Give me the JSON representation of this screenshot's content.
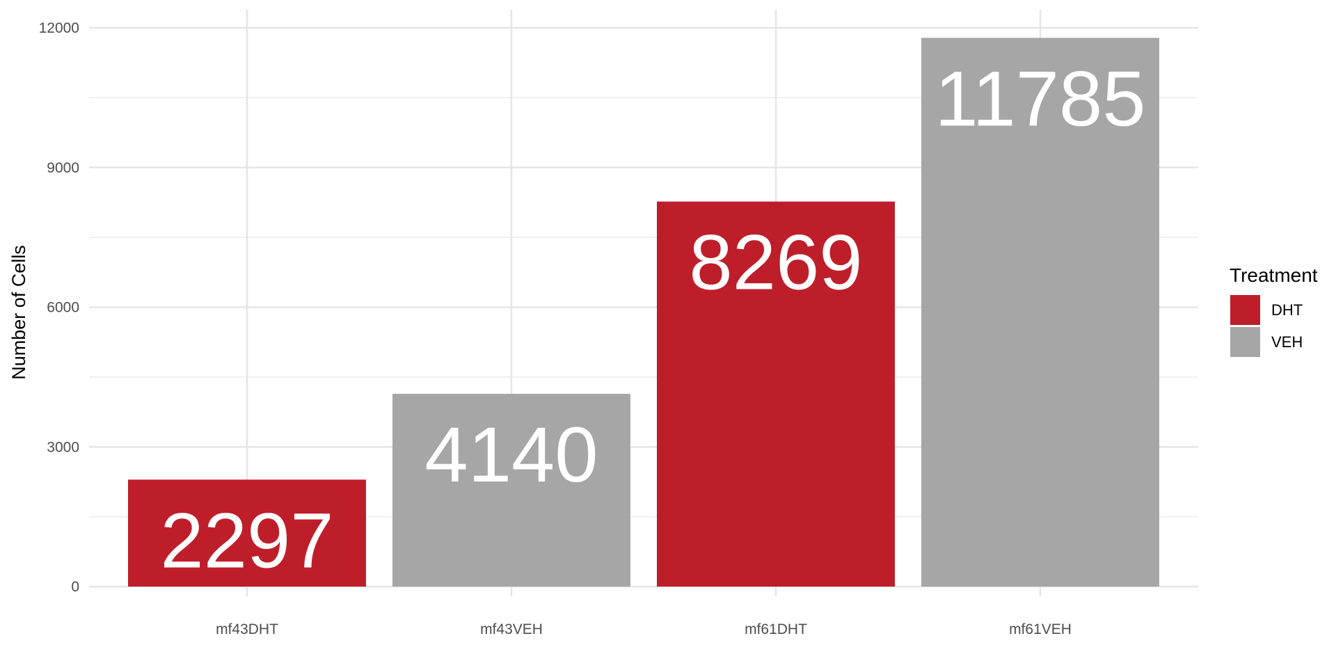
{
  "chart_data": {
    "type": "bar",
    "categories": [
      "mf43DHT",
      "mf43VEH",
      "mf61DHT",
      "mf61VEH"
    ],
    "values": [
      2297,
      4140,
      8269,
      11785
    ],
    "bar_labels": [
      "2297",
      "4140",
      "8269",
      "11785"
    ],
    "groups": [
      "DHT",
      "VEH",
      "DHT",
      "VEH"
    ],
    "xlabel": "",
    "ylabel": "Number of Cells",
    "ylim": [
      0,
      12000
    ],
    "yticks": [
      0,
      3000,
      6000,
      9000,
      12000
    ],
    "ytick_labels": [
      "0",
      "3000",
      "6000",
      "9000",
      "12000"
    ],
    "grid": true,
    "legend": {
      "title": "Treatment",
      "placement": "right",
      "entries": [
        {
          "label": "DHT",
          "color": "#be1e2a"
        },
        {
          "label": "VEH",
          "color": "#a6a6a6"
        }
      ]
    }
  }
}
